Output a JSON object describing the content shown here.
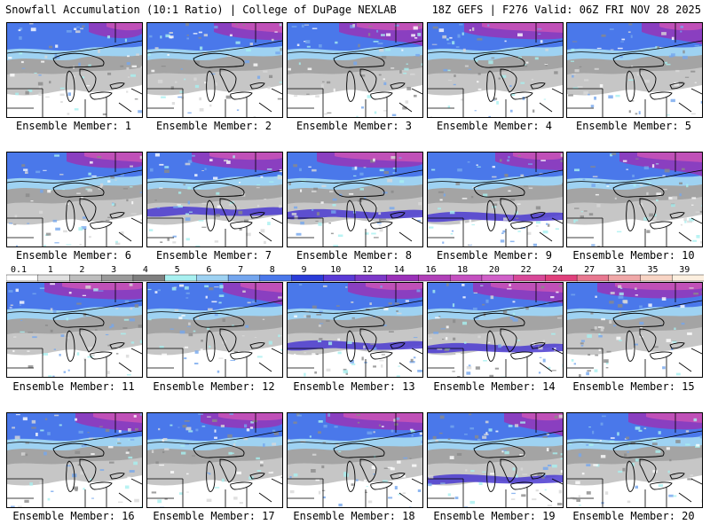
{
  "header": {
    "left": "Snowfall Accumulation (10:1 Ratio) | College of DuPage NEXLAB",
    "right": "18Z GEFS | F276 Valid: 06Z FRI NOV 28 2025"
  },
  "panels": [
    {
      "label": "Ensemble Member: 1"
    },
    {
      "label": "Ensemble Member: 2"
    },
    {
      "label": "Ensemble Member: 3"
    },
    {
      "label": "Ensemble Member: 4"
    },
    {
      "label": "Ensemble Member: 5"
    },
    {
      "label": "Ensemble Member: 6"
    },
    {
      "label": "Ensemble Member: 7"
    },
    {
      "label": "Ensemble Member: 8"
    },
    {
      "label": "Ensemble Member: 9"
    },
    {
      "label": "Ensemble Member: 10"
    },
    {
      "label": "Ensemble Member: 11"
    },
    {
      "label": "Ensemble Member: 12"
    },
    {
      "label": "Ensemble Member: 13"
    },
    {
      "label": "Ensemble Member: 14"
    },
    {
      "label": "Ensemble Member: 15"
    },
    {
      "label": "Ensemble Member: 16"
    },
    {
      "label": "Ensemble Member: 17"
    },
    {
      "label": "Ensemble Member: 18"
    },
    {
      "label": "Ensemble Member: 19"
    },
    {
      "label": "Ensemble Member: 20"
    }
  ],
  "colorbar": {
    "ticks": [
      "0.1",
      "1",
      "2",
      "3",
      "4",
      "5",
      "6",
      "7",
      "8",
      "9",
      "10",
      "12",
      "14",
      "16",
      "18",
      "20",
      "22",
      "24",
      "27",
      "31",
      "35",
      "39"
    ],
    "colors": [
      "#ffffff",
      "#e0e0e0",
      "#bdbdbd",
      "#9a9a9a",
      "#7f7f7f",
      "#a8f0f0",
      "#9ed2f2",
      "#74a6ee",
      "#4a78ea",
      "#2a3cd8",
      "#5a3ad6",
      "#7c38c8",
      "#9a30b8",
      "#b040b8",
      "#c450c0",
      "#d060c8",
      "#d84898",
      "#e0407c",
      "#e87890",
      "#f0a8a8",
      "#f8d4c4",
      "#fcefdf"
    ]
  }
}
